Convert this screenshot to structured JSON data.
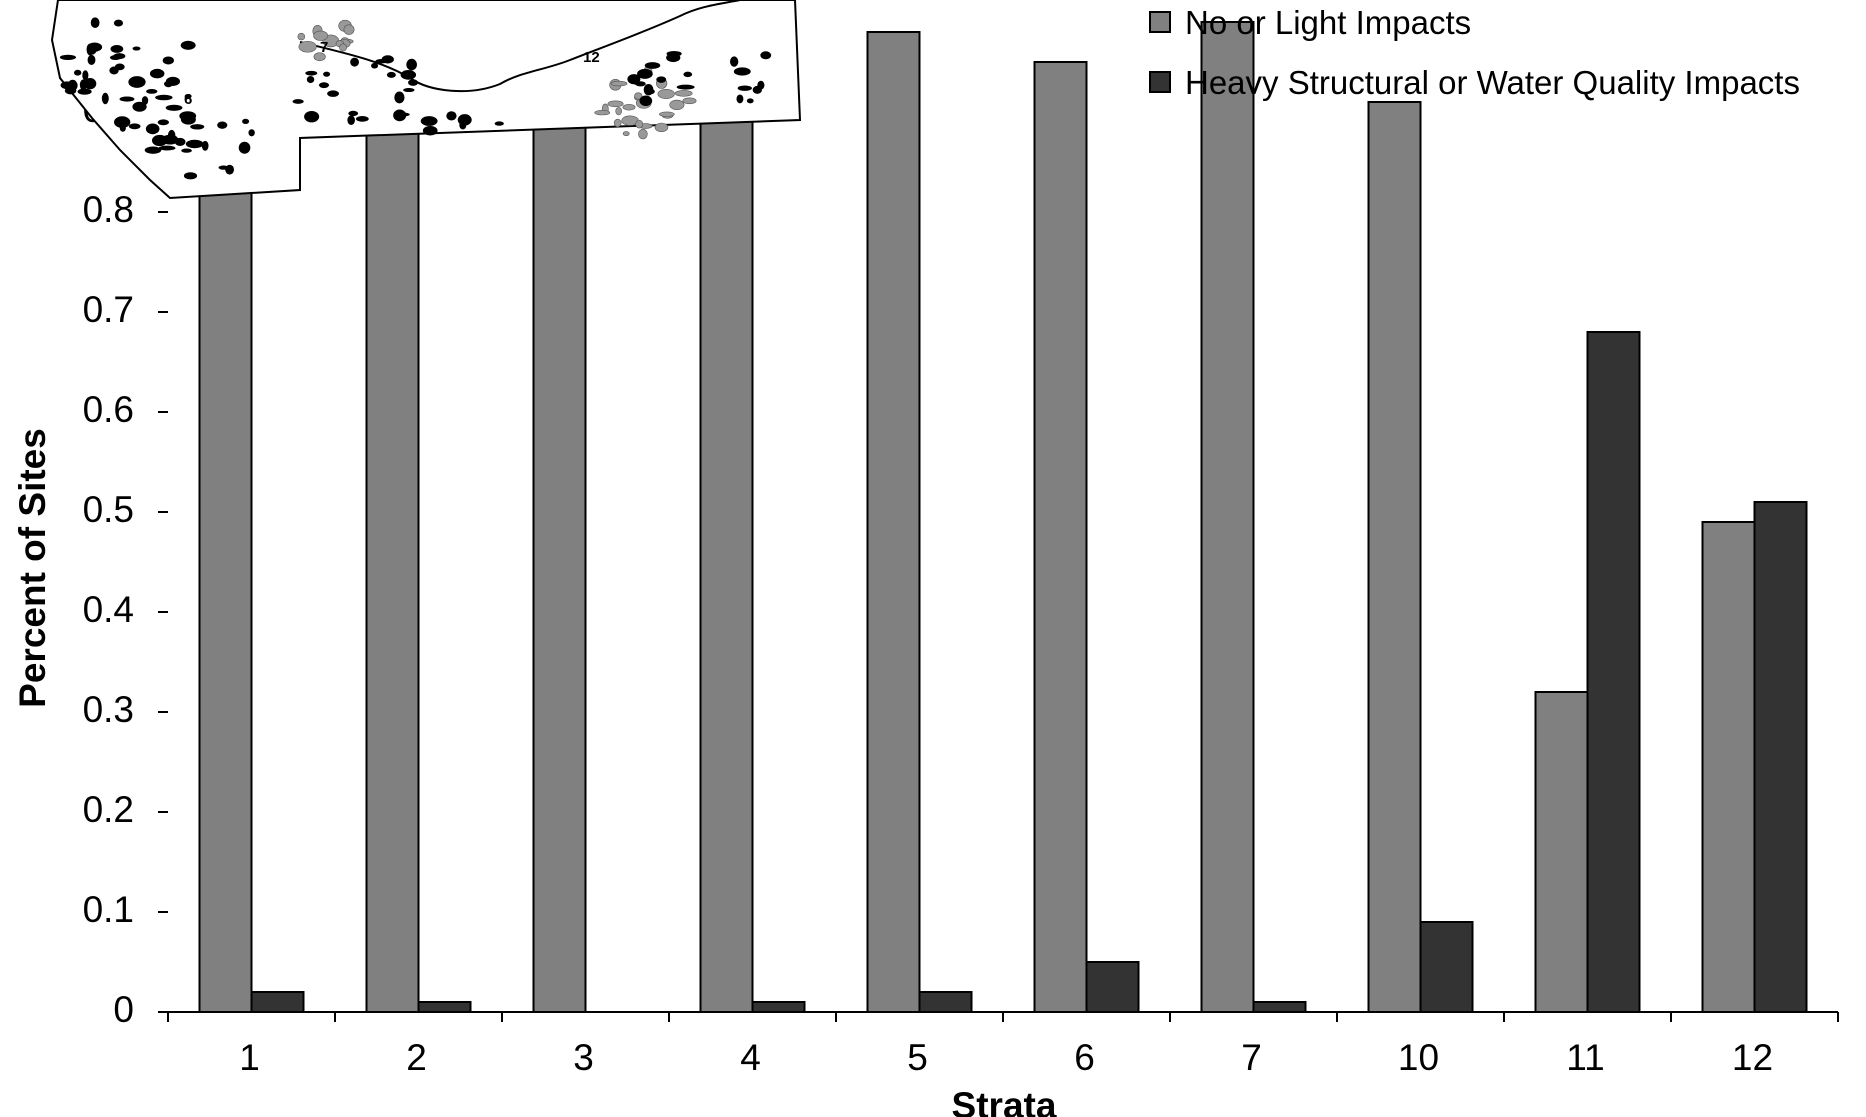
{
  "chart_data": {
    "type": "bar",
    "title": "",
    "xlabel": "Strata",
    "ylabel": "Percent of Sites",
    "categories": [
      "1",
      "2",
      "3",
      "4",
      "5",
      "6",
      "7",
      "10",
      "11",
      "12"
    ],
    "series": [
      {
        "name": "No or Light Impacts",
        "color": "#808080",
        "values": [
          0.98,
          0.99,
          1.0,
          0.99,
          0.98,
          0.95,
          0.99,
          0.91,
          0.32,
          0.49
        ]
      },
      {
        "name": "Heavy Structural or Water Quality Impacts",
        "color": "#333333",
        "values": [
          0.02,
          0.01,
          0.0,
          0.01,
          0.02,
          0.05,
          0.01,
          0.09,
          0.68,
          0.51
        ]
      }
    ],
    "ylim": [
      0,
      1
    ],
    "yticks": [
      "0",
      "0.1",
      "0.2",
      "0.3",
      "0.4",
      "0.5",
      "0.6",
      "0.7",
      "0.8",
      "0.9"
    ],
    "grid": false,
    "legend_position": "top-right",
    "inset": {
      "description": "region map with numbered strata",
      "labels": [
        "6",
        "7",
        "12"
      ]
    }
  }
}
